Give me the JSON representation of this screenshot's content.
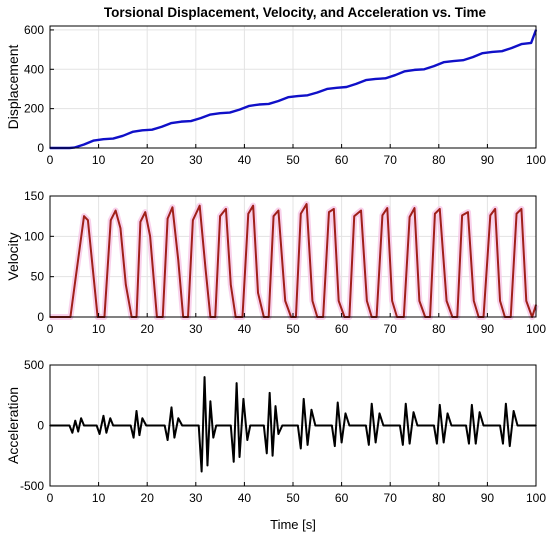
{
  "chart_data": [
    {
      "type": "line",
      "title": "Torsional Displacement, Velocity, and Acceleration vs. Time",
      "xlabel": "",
      "ylabel": "Displacement",
      "xlim": [
        0,
        100
      ],
      "ylim": [
        0,
        620
      ],
      "xticks": [
        0,
        10,
        20,
        30,
        40,
        50,
        60,
        70,
        80,
        90,
        100
      ],
      "yticks": [
        0,
        200,
        400,
        600
      ],
      "grid": true,
      "series": [
        {
          "color": "#1010c8",
          "x": [
            0,
            4,
            5,
            7,
            9,
            11,
            13,
            15,
            17,
            19,
            21,
            23,
            25,
            27,
            29,
            31,
            33,
            35,
            37,
            39,
            41,
            43,
            45,
            47,
            49,
            51,
            53,
            55,
            57,
            59,
            61,
            63,
            65,
            67,
            69,
            71,
            73,
            75,
            77,
            79,
            81,
            83,
            85,
            87,
            89,
            91,
            93,
            95,
            97,
            99,
            100
          ],
          "values": [
            0,
            0,
            2,
            18,
            38,
            45,
            48,
            62,
            82,
            90,
            93,
            108,
            127,
            134,
            137,
            152,
            170,
            177,
            180,
            195,
            214,
            221,
            224,
            239,
            258,
            264,
            268,
            282,
            300,
            306,
            310,
            326,
            345,
            351,
            354,
            370,
            390,
            397,
            400,
            416,
            436,
            442,
            446,
            462,
            482,
            488,
            492,
            508,
            528,
            534,
            600
          ]
        }
      ]
    },
    {
      "type": "line",
      "title": "",
      "xlabel": "",
      "ylabel": "Velocity",
      "xlim": [
        0,
        100
      ],
      "ylim": [
        0,
        150
      ],
      "xticks": [
        0,
        10,
        20,
        30,
        40,
        50,
        60,
        70,
        80,
        90,
        100
      ],
      "yticks": [
        0,
        50,
        100,
        150
      ],
      "grid": true,
      "series": [
        {
          "color": "#a0201a",
          "x": [
            0,
            4.2,
            5.2,
            7.0,
            7.8,
            8.8,
            9.8,
            11.2,
            12.5,
            13.5,
            14.5,
            15.6,
            16.8,
            17.8,
            18.6,
            19.6,
            20.6,
            22.0,
            23.2,
            24.2,
            25.2,
            26.4,
            27.4,
            28.4,
            29.4,
            30.8,
            32.0,
            33.0,
            34.0,
            35.0,
            36.2,
            37.2,
            38.2,
            39.6,
            40.8,
            41.8,
            42.8,
            44.0,
            45.0,
            46.0,
            47.0,
            48.4,
            49.6,
            50.6,
            51.6,
            52.8,
            54.0,
            55.0,
            56.2,
            57.4,
            58.4,
            59.4,
            60.6,
            61.6,
            62.6,
            64.0,
            65.2,
            66.2,
            67.2,
            68.4,
            69.4,
            70.4,
            71.4,
            72.8,
            74.0,
            75.0,
            76.0,
            77.2,
            78.2,
            79.2,
            80.2,
            81.6,
            82.8,
            83.8,
            84.8,
            86.0,
            87.2,
            88.2,
            89.2,
            90.6,
            91.6,
            92.6,
            93.6,
            94.8,
            96.0,
            97.0,
            98.0,
            99.2,
            100
          ],
          "values": [
            0,
            0,
            45,
            125,
            120,
            60,
            0,
            0,
            120,
            132,
            110,
            40,
            0,
            0,
            118,
            130,
            100,
            0,
            0,
            122,
            136,
            70,
            0,
            0,
            120,
            138,
            60,
            0,
            0,
            125,
            134,
            40,
            0,
            0,
            128,
            138,
            30,
            0,
            0,
            125,
            132,
            20,
            0,
            0,
            128,
            140,
            20,
            0,
            0,
            130,
            134,
            20,
            0,
            0,
            125,
            132,
            20,
            0,
            0,
            126,
            135,
            20,
            0,
            0,
            124,
            135,
            20,
            0,
            0,
            128,
            134,
            20,
            0,
            0,
            126,
            130,
            20,
            0,
            0,
            126,
            134,
            20,
            0,
            0,
            128,
            134,
            20,
            0,
            15
          ]
        }
      ]
    },
    {
      "type": "line",
      "title": "",
      "xlabel": "Time [s]",
      "ylabel": "Acceleration",
      "xlim": [
        0,
        100
      ],
      "ylim": [
        -500,
        500
      ],
      "xticks": [
        0,
        10,
        20,
        30,
        40,
        50,
        60,
        70,
        80,
        90,
        100
      ],
      "yticks": [
        -500,
        0,
        500
      ],
      "grid": true,
      "series": [
        {
          "color": "#000000",
          "x": [
            0,
            4,
            4.6,
            5.2,
            5.8,
            6.4,
            7.0,
            9.6,
            10.2,
            11.0,
            11.6,
            12.4,
            13.0,
            16.6,
            17.2,
            17.8,
            18.4,
            19.0,
            19.8,
            23.6,
            24.2,
            25.0,
            25.6,
            26.4,
            27.2,
            30.6,
            31.2,
            31.8,
            32.4,
            33.0,
            33.6,
            34.2,
            37.2,
            37.8,
            38.4,
            39.0,
            39.8,
            40.6,
            41.2,
            44.0,
            44.6,
            45.2,
            45.8,
            46.4,
            47.0,
            47.8,
            51.0,
            51.6,
            52.2,
            53.0,
            53.8,
            54.6,
            58.0,
            58.6,
            59.2,
            60.0,
            60.8,
            61.6,
            65.0,
            65.6,
            66.2,
            67.0,
            67.8,
            68.6,
            72.0,
            72.6,
            73.2,
            74.0,
            74.8,
            75.6,
            79.0,
            79.6,
            80.2,
            81.0,
            81.8,
            82.6,
            85.6,
            86.2,
            86.8,
            87.6,
            88.4,
            89.2,
            92.6,
            93.2,
            93.8,
            94.6,
            95.4,
            96.2,
            99.0,
            100
          ],
          "values": [
            0,
            0,
            -60,
            40,
            -50,
            60,
            0,
            0,
            -70,
            80,
            -60,
            60,
            0,
            0,
            -100,
            120,
            -80,
            60,
            0,
            0,
            -120,
            150,
            -100,
            60,
            0,
            0,
            -380,
            400,
            -330,
            200,
            -100,
            0,
            0,
            -300,
            350,
            -260,
            220,
            -120,
            0,
            0,
            -230,
            270,
            -250,
            160,
            -70,
            0,
            0,
            -190,
            220,
            -160,
            130,
            0,
            0,
            -170,
            190,
            -140,
            100,
            0,
            0,
            -160,
            180,
            -140,
            100,
            0,
            0,
            -160,
            180,
            -150,
            110,
            0,
            0,
            -150,
            170,
            -140,
            100,
            0,
            0,
            -150,
            170,
            -150,
            110,
            0,
            0,
            -150,
            180,
            -170,
            120,
            0,
            0,
            0
          ]
        }
      ]
    }
  ]
}
